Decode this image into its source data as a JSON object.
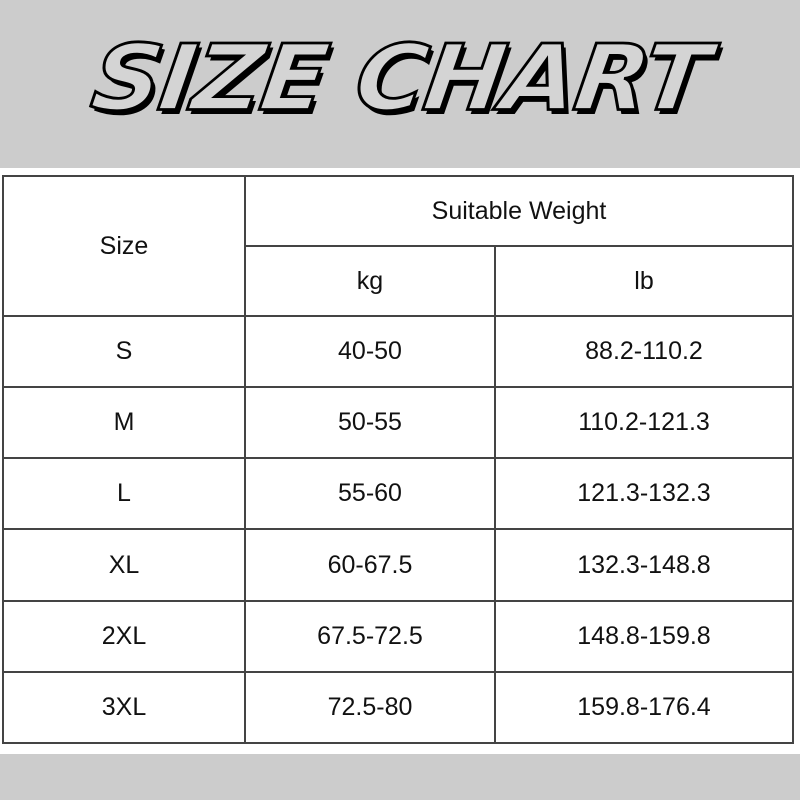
{
  "title": "SIZE CHART",
  "table": {
    "size_header": "Size",
    "weight_header": "Suitable Weight",
    "kg_header": "kg",
    "lb_header": "lb",
    "rows": [
      {
        "size": "S",
        "kg": "40-50",
        "lb": "88.2-110.2"
      },
      {
        "size": "M",
        "kg": "50-55",
        "lb": "110.2-121.3"
      },
      {
        "size": "L",
        "kg": "55-60",
        "lb": "121.3-132.3"
      },
      {
        "size": "XL",
        "kg": "60-67.5",
        "lb": "132.3-148.8"
      },
      {
        "size": "2XL",
        "kg": "67.5-72.5",
        "lb": "148.8-159.8"
      },
      {
        "size": "3XL",
        "kg": "72.5-80",
        "lb": "159.8-176.4"
      }
    ]
  }
}
